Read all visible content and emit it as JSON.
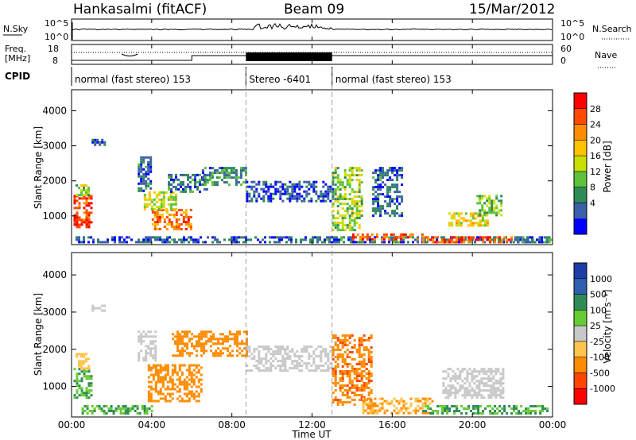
{
  "header": {
    "station": "Hankasalmi (fitACF)",
    "beam": "Beam 09",
    "date": "15/Mar/2012"
  },
  "noise_panel": {
    "left_label": "N.Sky",
    "right_label": "N.Search",
    "left_ticks": [
      "10^5",
      "10^0"
    ],
    "right_ticks": [
      "10^5",
      "10^0"
    ]
  },
  "freq_panel": {
    "left_label_1": "Freq.",
    "left_label_2": "[MHz]",
    "left_ticks": [
      "18",
      "8"
    ],
    "right_label": "Nave",
    "right_ticks": [
      "60",
      "0"
    ],
    "cpid_label": "CPID"
  },
  "cpid_segments": [
    {
      "label": "normal (fast stereo) 153",
      "start_hour": 0,
      "end_hour": 8.7
    },
    {
      "label": "Stereo -6401",
      "start_hour": 8.7,
      "end_hour": 13.0
    },
    {
      "label": "normal (fast stereo) 153",
      "start_hour": 13.0,
      "end_hour": 24
    }
  ],
  "axes": {
    "ylabel": "Slant Range [km]",
    "y_ticks": [
      "4000",
      "3000",
      "2000",
      "1000"
    ],
    "y_tick_values": [
      4000,
      3000,
      2000,
      1000
    ],
    "ylim": [
      180,
      4600
    ],
    "x_ticks": [
      "00:00",
      "04:00",
      "08:00",
      "12:00",
      "16:00",
      "20:00",
      "00:00"
    ],
    "x_tick_hours": [
      0,
      4,
      8,
      12,
      16,
      20,
      24
    ],
    "xlim": [
      0,
      24
    ],
    "xlabel": "Time UT"
  },
  "power_colorbar": {
    "label": "Power [dB]",
    "ticks": [
      "28",
      "24",
      "20",
      "16",
      "12",
      "8",
      "4"
    ],
    "colors": [
      "#ff0000",
      "#ff4a00",
      "#ff8c00",
      "#ffc200",
      "#c8e000",
      "#5cc23a",
      "#2e8b57",
      "#3a60a8",
      "#0000ff"
    ]
  },
  "velocity_colorbar": {
    "label": "Velocity [m s⁻¹]",
    "ticks": [
      "1000",
      "500",
      "100",
      "25",
      "-25",
      "-100",
      "-500",
      "-1000"
    ],
    "colors": [
      "#1e3ca8",
      "#2e5fb0",
      "#2e8b57",
      "#66cc33",
      "#c8c8c8",
      "#ffc44d",
      "#ff8c00",
      "#ff4500",
      "#ff0000"
    ]
  },
  "chart_data": {
    "type": "heatmap",
    "title": "Hankasalmi (fitACF) Beam 09 15/Mar/2012",
    "xlabel": "Time UT",
    "ylabel": "Slant Range [km]",
    "xlim": [
      0,
      24
    ],
    "ylim": [
      180,
      4600
    ],
    "panels": [
      {
        "name": "Power [dB]",
        "regions": [
          {
            "t0": 0.1,
            "t1": 1.0,
            "r0": 700,
            "r1": 1600,
            "value": 28
          },
          {
            "t0": 0.2,
            "t1": 0.9,
            "r0": 1600,
            "r1": 1900,
            "value": 14
          },
          {
            "t0": 0.2,
            "t1": 24,
            "r0": 250,
            "r1": 420,
            "value": 6
          },
          {
            "t0": 1.0,
            "t1": 1.6,
            "r0": 3050,
            "r1": 3200,
            "value": 6
          },
          {
            "t0": 3.3,
            "t1": 4.0,
            "r0": 1700,
            "r1": 2700,
            "value": 6
          },
          {
            "t0": 4.0,
            "t1": 6.0,
            "r0": 600,
            "r1": 1200,
            "value": 24
          },
          {
            "t0": 3.6,
            "t1": 5.2,
            "r0": 1200,
            "r1": 1700,
            "value": 16
          },
          {
            "t0": 4.8,
            "t1": 6.8,
            "r0": 1700,
            "r1": 2200,
            "value": 7
          },
          {
            "t0": 6.5,
            "t1": 8.7,
            "r0": 1900,
            "r1": 2400,
            "value": 8
          },
          {
            "t0": 8.7,
            "t1": 13.0,
            "r0": 1450,
            "r1": 2000,
            "value": 4
          },
          {
            "t0": 13.0,
            "t1": 14.5,
            "r0": 600,
            "r1": 2400,
            "value": 14
          },
          {
            "t0": 14.0,
            "t1": 17.5,
            "r0": 300,
            "r1": 500,
            "value": 26
          },
          {
            "t0": 17.5,
            "t1": 22.0,
            "r0": 280,
            "r1": 420,
            "value": 26
          },
          {
            "t0": 15.0,
            "t1": 16.5,
            "r0": 1000,
            "r1": 2400,
            "value": 6
          },
          {
            "t0": 18.8,
            "t1": 20.8,
            "r0": 700,
            "r1": 1100,
            "value": 18
          },
          {
            "t0": 20.2,
            "t1": 21.4,
            "r0": 1000,
            "r1": 1600,
            "value": 12
          },
          {
            "t0": 22.0,
            "t1": 23.8,
            "r0": 280,
            "r1": 420,
            "value": 8
          }
        ]
      },
      {
        "name": "Velocity [m s-1]",
        "regions": [
          {
            "t0": 0.1,
            "t1": 1.0,
            "r0": 700,
            "r1": 1500,
            "value": 100
          },
          {
            "t0": 0.2,
            "t1": 0.9,
            "r0": 1500,
            "r1": 1900,
            "value": -50
          },
          {
            "t0": 0.5,
            "t1": 4.0,
            "r0": 300,
            "r1": 500,
            "value": 100
          },
          {
            "t0": 1.0,
            "t1": 1.6,
            "r0": 3050,
            "r1": 3200,
            "value": 0
          },
          {
            "t0": 3.3,
            "t1": 4.2,
            "r0": 1700,
            "r1": 2500,
            "value": 0
          },
          {
            "t0": 3.8,
            "t1": 6.5,
            "r0": 600,
            "r1": 1600,
            "value": -200
          },
          {
            "t0": 5.0,
            "t1": 8.7,
            "r0": 1800,
            "r1": 2500,
            "value": -300
          },
          {
            "t0": 8.7,
            "t1": 13.0,
            "r0": 1450,
            "r1": 2100,
            "value": 0
          },
          {
            "t0": 13.0,
            "t1": 15.0,
            "r0": 500,
            "r1": 2400,
            "value": -400
          },
          {
            "t0": 14.5,
            "t1": 18.0,
            "r0": 280,
            "r1": 700,
            "value": -100
          },
          {
            "t0": 17.5,
            "t1": 23.8,
            "r0": 250,
            "r1": 500,
            "value": 100
          },
          {
            "t0": 18.5,
            "t1": 21.5,
            "r0": 700,
            "r1": 1500,
            "value": 0
          }
        ]
      }
    ]
  }
}
